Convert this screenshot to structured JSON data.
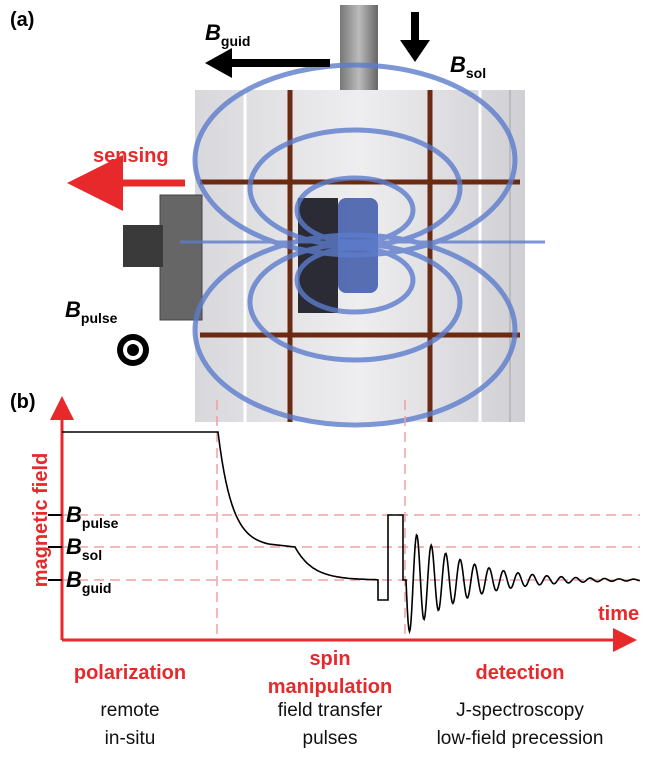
{
  "panel_a": {
    "label": "(a)",
    "b_guid": {
      "symbol": "B",
      "subscript": "guid"
    },
    "b_sol": {
      "symbol": "B",
      "subscript": "sol"
    },
    "sensing": "sensing",
    "b_pulse": {
      "symbol": "B",
      "subscript": "pulse"
    }
  },
  "panel_b": {
    "label": "(b)",
    "y_axis": "magnetic field",
    "x_axis": "time",
    "levels": [
      {
        "symbol": "B",
        "subscript": "pulse"
      },
      {
        "symbol": "B",
        "subscript": "sol"
      },
      {
        "symbol": "B",
        "subscript": "guid"
      }
    ],
    "phases": [
      {
        "title": [
          "polarization"
        ],
        "lines": [
          "remote",
          "in-situ"
        ]
      },
      {
        "title": [
          "spin",
          "manipulation"
        ],
        "lines": [
          "field transfer",
          "pulses"
        ]
      },
      {
        "title": [
          "detection"
        ],
        "lines": [
          "J-spectroscopy",
          "low-field precession"
        ]
      }
    ]
  }
}
